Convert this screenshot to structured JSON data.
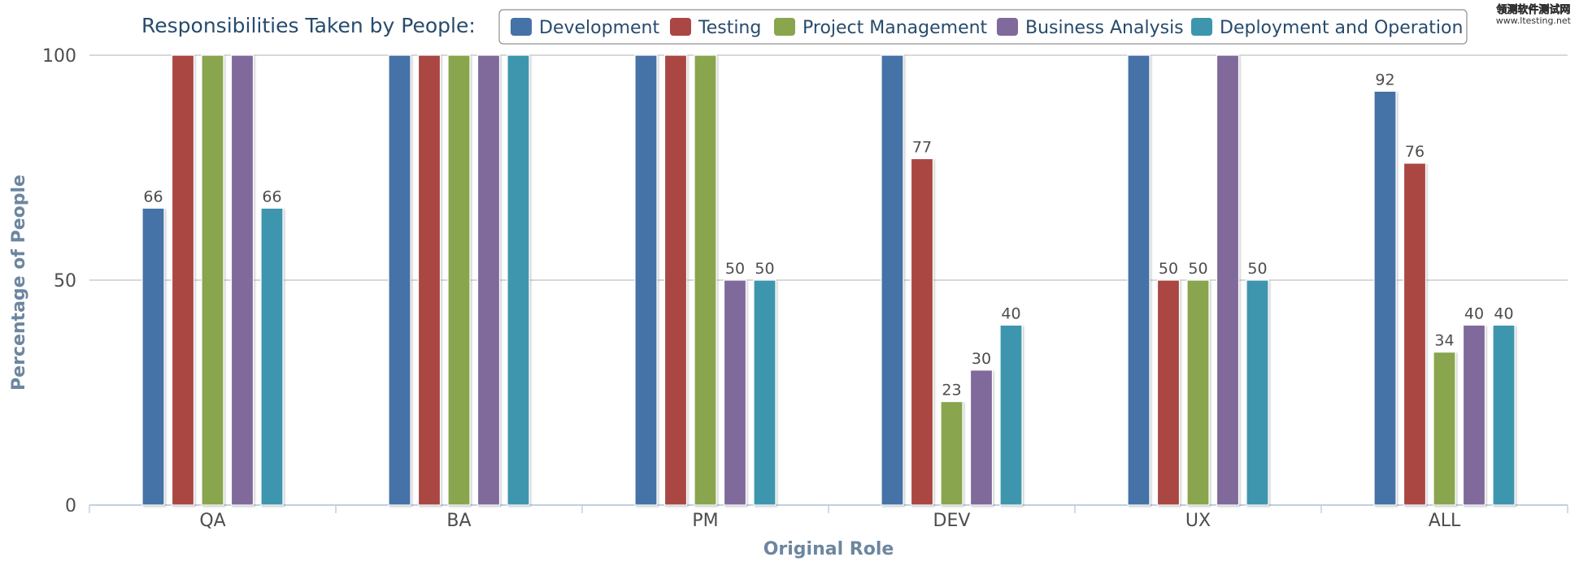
{
  "chart_data": {
    "type": "bar",
    "legend_title": "Responsibilities Taken by People:",
    "categories": [
      "QA",
      "BA",
      "PM",
      "DEV",
      "UX",
      "ALL"
    ],
    "series": [
      {
        "name": "Development",
        "color": "#4572a7",
        "values": [
          66,
          100,
          100,
          100,
          100,
          92
        ]
      },
      {
        "name": "Testing",
        "color": "#aa4643",
        "values": [
          100,
          100,
          100,
          77,
          50,
          76
        ]
      },
      {
        "name": "Project Management",
        "color": "#89a54e",
        "values": [
          100,
          100,
          100,
          23,
          50,
          34
        ]
      },
      {
        "name": "Business Analysis",
        "color": "#80699b",
        "values": [
          100,
          100,
          50,
          30,
          100,
          40
        ]
      },
      {
        "name": "Deployment and Operation",
        "color": "#3d96ae",
        "values": [
          66,
          100,
          50,
          40,
          50,
          40
        ]
      }
    ],
    "data_labels": [
      [
        "66",
        "",
        "",
        "",
        "",
        "92"
      ],
      [
        "",
        "",
        "",
        "77",
        "50",
        "76"
      ],
      [
        "",
        "",
        "",
        "23",
        "50",
        "34"
      ],
      [
        "",
        "",
        "50",
        "30",
        "",
        "40"
      ],
      [
        "66",
        "",
        "50",
        "40",
        "50",
        "40"
      ]
    ],
    "xlabel": "Original Role",
    "ylabel": "Percentage of People",
    "ylim": [
      0,
      100
    ],
    "yticks": [
      "0",
      "50",
      "100"
    ],
    "grid": true,
    "legend_position": "top"
  },
  "watermark": {
    "line1": "领测软件测试网",
    "line2": "www.ltesting.net"
  }
}
